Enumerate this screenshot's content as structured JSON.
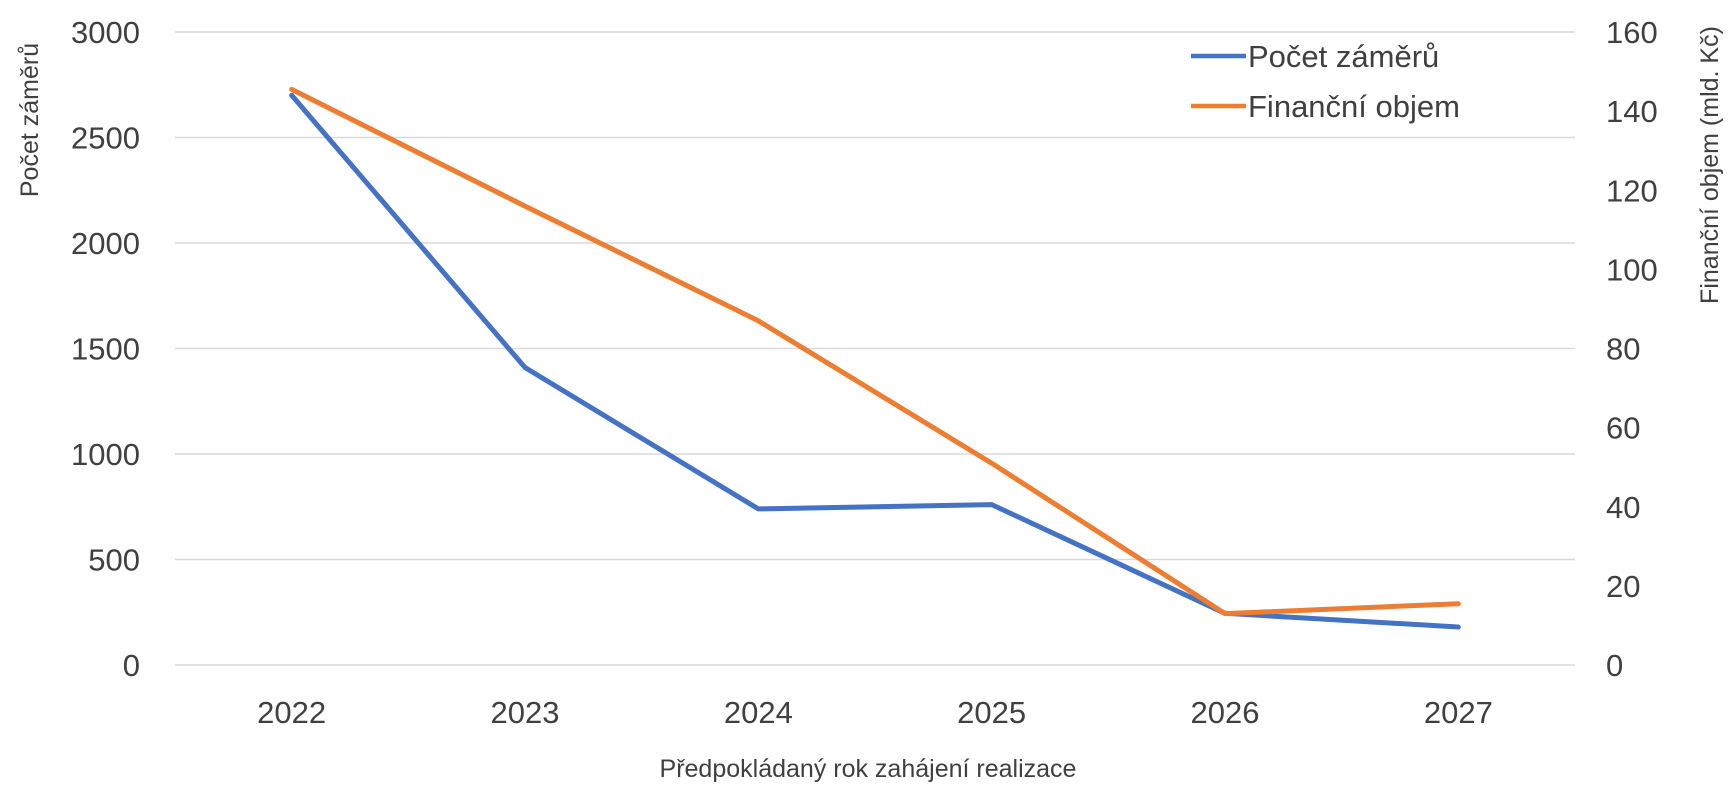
{
  "chart_data": {
    "type": "line",
    "categories": [
      "2022",
      "2023",
      "2024",
      "2025",
      "2026",
      "2027"
    ],
    "series": [
      {
        "name": "Počet záměrů",
        "axis": "left",
        "color": "#4472c4",
        "values": [
          2700,
          1410,
          740,
          760,
          245,
          180
        ]
      },
      {
        "name": "Finanční objem",
        "axis": "right",
        "color": "#ed7d31",
        "values": [
          145.5,
          116,
          87,
          51,
          13,
          15.5
        ]
      }
    ],
    "xlabel": "Předpokládaný rok zahájení realizace",
    "ylabel": "Počet záměrů",
    "y2label": "Finanční objem (mld. Kč)",
    "ylim": [
      0,
      3000
    ],
    "y2lim": [
      0,
      160
    ],
    "yticks": [
      "0",
      "500",
      "1000",
      "1500",
      "2000",
      "2500",
      "3000"
    ],
    "y2ticks": [
      "0",
      "20",
      "40",
      "60",
      "80",
      "100",
      "120",
      "140",
      "160"
    ],
    "grid": true,
    "legend_position": "top-right",
    "gridline_color": "#d9d9d9",
    "text_color": "#404040"
  }
}
